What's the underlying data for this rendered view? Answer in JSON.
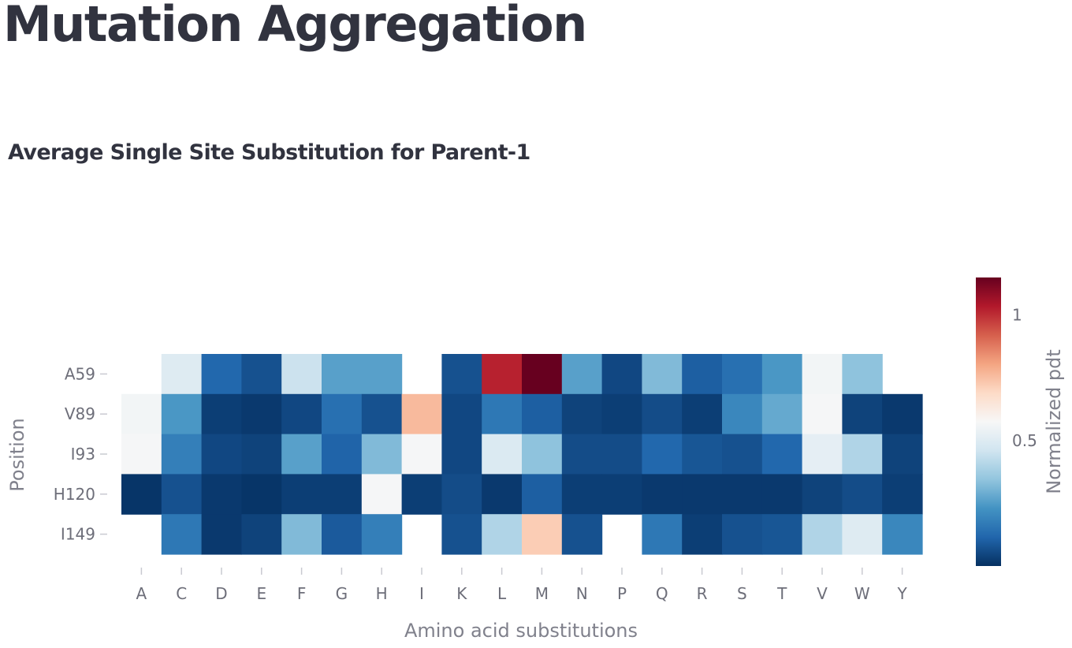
{
  "page": {
    "title": "Mutation Aggregation"
  },
  "chart_data": {
    "type": "heatmap",
    "title": "Average Single Site Substitution for Parent-1",
    "xlabel": "Amino acid substitutions",
    "ylabel": "Position",
    "colorbar_label": "Normalized pdt",
    "colorscale": "RdBu (reversed)",
    "zmin": 0.0,
    "zmax": 1.15,
    "colorbar_ticks": [
      0.5,
      1
    ],
    "x": [
      "A",
      "C",
      "D",
      "E",
      "F",
      "G",
      "H",
      "I",
      "K",
      "L",
      "M",
      "N",
      "P",
      "Q",
      "R",
      "S",
      "T",
      "V",
      "W",
      "Y"
    ],
    "y": [
      "A59",
      "V89",
      "I93",
      "H120",
      "I149"
    ],
    "z": [
      [
        null,
        0.5,
        0.12,
        0.07,
        0.45,
        0.26,
        0.26,
        null,
        0.07,
        1.02,
        1.15,
        0.26,
        0.05,
        0.32,
        0.1,
        0.14,
        0.24,
        0.56,
        0.34,
        null
      ],
      [
        0.56,
        0.24,
        0.03,
        0.02,
        0.05,
        0.14,
        0.07,
        0.76,
        0.05,
        0.16,
        0.1,
        0.04,
        0.03,
        0.06,
        0.03,
        0.2,
        0.28,
        0.57,
        0.04,
        0.02
      ],
      [
        0.57,
        0.18,
        0.05,
        0.04,
        0.26,
        0.11,
        0.32,
        0.57,
        0.05,
        0.49,
        0.34,
        0.06,
        0.06,
        0.12,
        0.08,
        0.07,
        0.12,
        0.52,
        0.4,
        0.04
      ],
      [
        0.01,
        0.07,
        0.02,
        0.01,
        0.03,
        0.03,
        0.57,
        0.03,
        0.06,
        0.02,
        0.1,
        0.03,
        0.03,
        0.02,
        0.02,
        0.02,
        0.02,
        0.04,
        0.06,
        0.03
      ],
      [
        null,
        0.16,
        0.02,
        0.04,
        0.32,
        0.09,
        0.18,
        null,
        0.07,
        0.4,
        0.72,
        0.07,
        null,
        0.16,
        0.03,
        0.07,
        0.08,
        0.4,
        0.5,
        0.2
      ]
    ]
  }
}
